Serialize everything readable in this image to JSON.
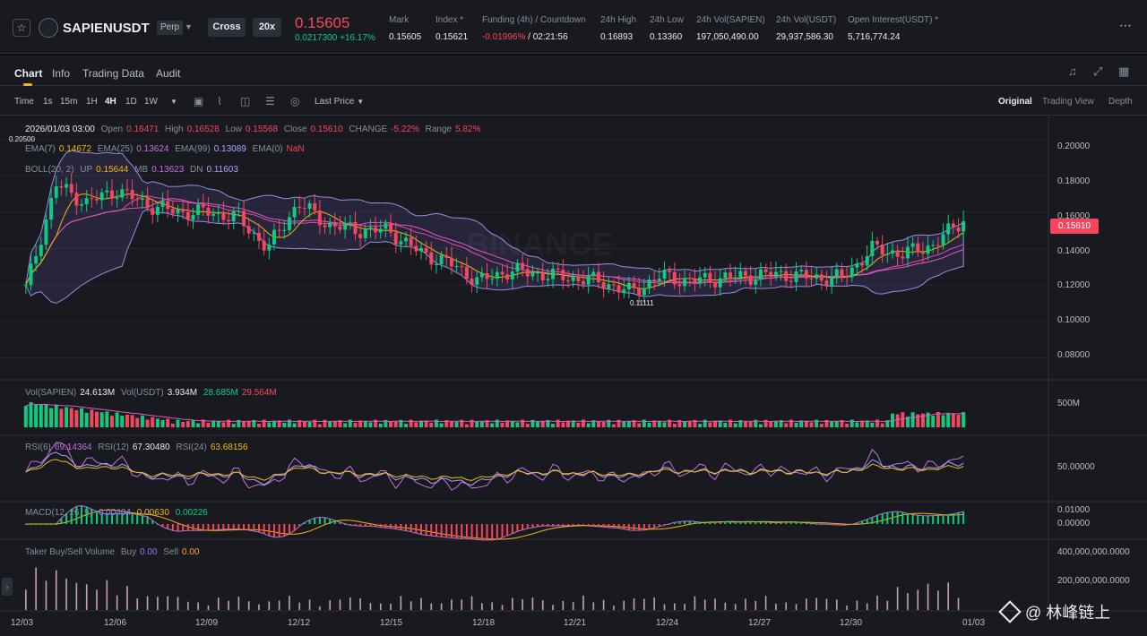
{
  "header": {
    "star_icon": "star-outline-icon",
    "symbol": "SAPIENUSDT",
    "contract_badge": "Perp",
    "margin_mode": "Cross",
    "leverage": "20x",
    "last_price": "0.15605",
    "change_abs": "0.0217300",
    "change_pct": "+16.17%",
    "stats": [
      {
        "label": "Mark",
        "value": "0.15605"
      },
      {
        "label": "Index",
        "value": "0.15621"
      },
      {
        "label": "Funding (4h) / Countdown",
        "value_rate": "-0.01996%",
        "value_time": "/ 02:21:56"
      },
      {
        "label": "24h High",
        "value": "0.16893"
      },
      {
        "label": "24h Low",
        "value": "0.13360"
      },
      {
        "label": "24h Vol(SAPIEN)",
        "value": "197,050,490.00"
      },
      {
        "label": "24h Vol(USDT)",
        "value": "29,937,586.30"
      },
      {
        "label": "Open Interest(USDT)",
        "value": "5,716,774.24"
      }
    ],
    "colors": {
      "down": "#f6465d",
      "up": "#0ecb81",
      "accent": "#f0b90b"
    }
  },
  "tabs": [
    "Chart",
    "Info",
    "Trading Data",
    "Audit"
  ],
  "toolbar": {
    "timeframes": [
      "Time",
      "1s",
      "15m",
      "1H",
      "4H",
      "1D",
      "1W"
    ],
    "active_timeframe": "4H",
    "price_type": "Last Price",
    "views": [
      "Original",
      "Trading View",
      "Depth"
    ],
    "active_view": "Original"
  },
  "ohlc": {
    "date": "2026/01/03 03:00",
    "open_label": "Open",
    "open": "0.16471",
    "high_label": "High",
    "high": "0.16528",
    "low_label": "Low",
    "low": "0.15568",
    "close_label": "Close",
    "close": "0.15610",
    "change_label": "CHANGE",
    "change": "-5.22%",
    "range_label": "Range",
    "range": "5.82%"
  },
  "ema": {
    "ema7_label": "EMA(7)",
    "ema7": "0.14672",
    "ema25_label": "EMA(25)",
    "ema25": "0.13624",
    "ema99_label": "EMA(99)",
    "ema99": "0.13089",
    "ema0_label": "EMA(0)",
    "ema0": "NaN"
  },
  "boll": {
    "label": "BOLL(20, 2)",
    "up_label": "UP",
    "up": "0.15644",
    "mb_label": "MB",
    "mb": "0.13623",
    "dn_label": "DN",
    "dn": "0.11603"
  },
  "volume": {
    "label": "Vol(SAPIEN)",
    "value": "24.613M",
    "usdt_label": "Vol(USDT)",
    "usdt": "3.934M",
    "ma1": "28.685M",
    "ma2": "29.564M",
    "axis": "500M"
  },
  "rsi": {
    "rsi6_label": "RSI(6)",
    "rsi6": "69.14364",
    "rsi12_label": "RSI(12)",
    "rsi12": "67.30480",
    "rsi24_label": "RSI(24)",
    "rsi24": "63.68156",
    "axis": "50.00000"
  },
  "macd": {
    "label": "MACD(12, 26, 9)",
    "v1": "0.00404",
    "v2": "0.00630",
    "v3": "0.00226",
    "axis_top": "0.01000",
    "axis_bottom": "0.00000"
  },
  "taker": {
    "label": "Taker Buy/Sell Volume",
    "buy_label": "Buy",
    "buy": "0.00",
    "sell_label": "Sell",
    "sell": "0.00",
    "axis_top": "400,000,000.0000",
    "axis_mid": "200,000,000.0000"
  },
  "price_axis": [
    "0.20000",
    "0.18000",
    "0.16000",
    "0.14000",
    "0.12000",
    "0.10000",
    "0.08000"
  ],
  "current_price_tag": "0.15610",
  "high_marker": "0.20500",
  "low_marker": "0.11111",
  "date_axis": [
    "12/03",
    "12/06",
    "12/09",
    "12/12",
    "12/15",
    "12/18",
    "12/21",
    "12/24",
    "12/27",
    "12/30",
    "01/03"
  ],
  "watermark_text": "@ 林峰链上",
  "chart_data": {
    "type": "candlestick",
    "x_range": [
      "2025/12/03",
      "2026/01/03"
    ],
    "ylim": [
      0.07,
      0.21
    ],
    "y_ticks": [
      0.08,
      0.1,
      0.12,
      0.14,
      0.16,
      0.18,
      0.2
    ],
    "series": [
      {
        "name": "Close",
        "points": [
          {
            "x": "12/03",
            "y": 0.118
          },
          {
            "x": "12/04",
            "y": 0.175
          },
          {
            "x": "12/05",
            "y": 0.165
          },
          {
            "x": "12/06",
            "y": 0.172
          },
          {
            "x": "12/07",
            "y": 0.164
          },
          {
            "x": "12/08",
            "y": 0.16
          },
          {
            "x": "12/09",
            "y": 0.16
          },
          {
            "x": "12/10",
            "y": 0.157
          },
          {
            "x": "12/11",
            "y": 0.14
          },
          {
            "x": "12/12",
            "y": 0.165
          },
          {
            "x": "12/13",
            "y": 0.153
          },
          {
            "x": "12/14",
            "y": 0.15
          },
          {
            "x": "12/15",
            "y": 0.15
          },
          {
            "x": "12/16",
            "y": 0.138
          },
          {
            "x": "12/17",
            "y": 0.132
          },
          {
            "x": "12/18",
            "y": 0.122
          },
          {
            "x": "12/19",
            "y": 0.128
          },
          {
            "x": "12/20",
            "y": 0.126
          },
          {
            "x": "12/21",
            "y": 0.124
          },
          {
            "x": "12/22",
            "y": 0.122
          },
          {
            "x": "12/23",
            "y": 0.116
          },
          {
            "x": "12/24",
            "y": 0.125
          },
          {
            "x": "12/25",
            "y": 0.122
          },
          {
            "x": "12/26",
            "y": 0.124
          },
          {
            "x": "12/27",
            "y": 0.125
          },
          {
            "x": "12/28",
            "y": 0.126
          },
          {
            "x": "12/29",
            "y": 0.124
          },
          {
            "x": "12/30",
            "y": 0.124
          },
          {
            "x": "12/31",
            "y": 0.14
          },
          {
            "x": "01/01",
            "y": 0.137
          },
          {
            "x": "01/02",
            "y": 0.142
          },
          {
            "x": "01/03",
            "y": 0.156
          }
        ]
      }
    ]
  }
}
